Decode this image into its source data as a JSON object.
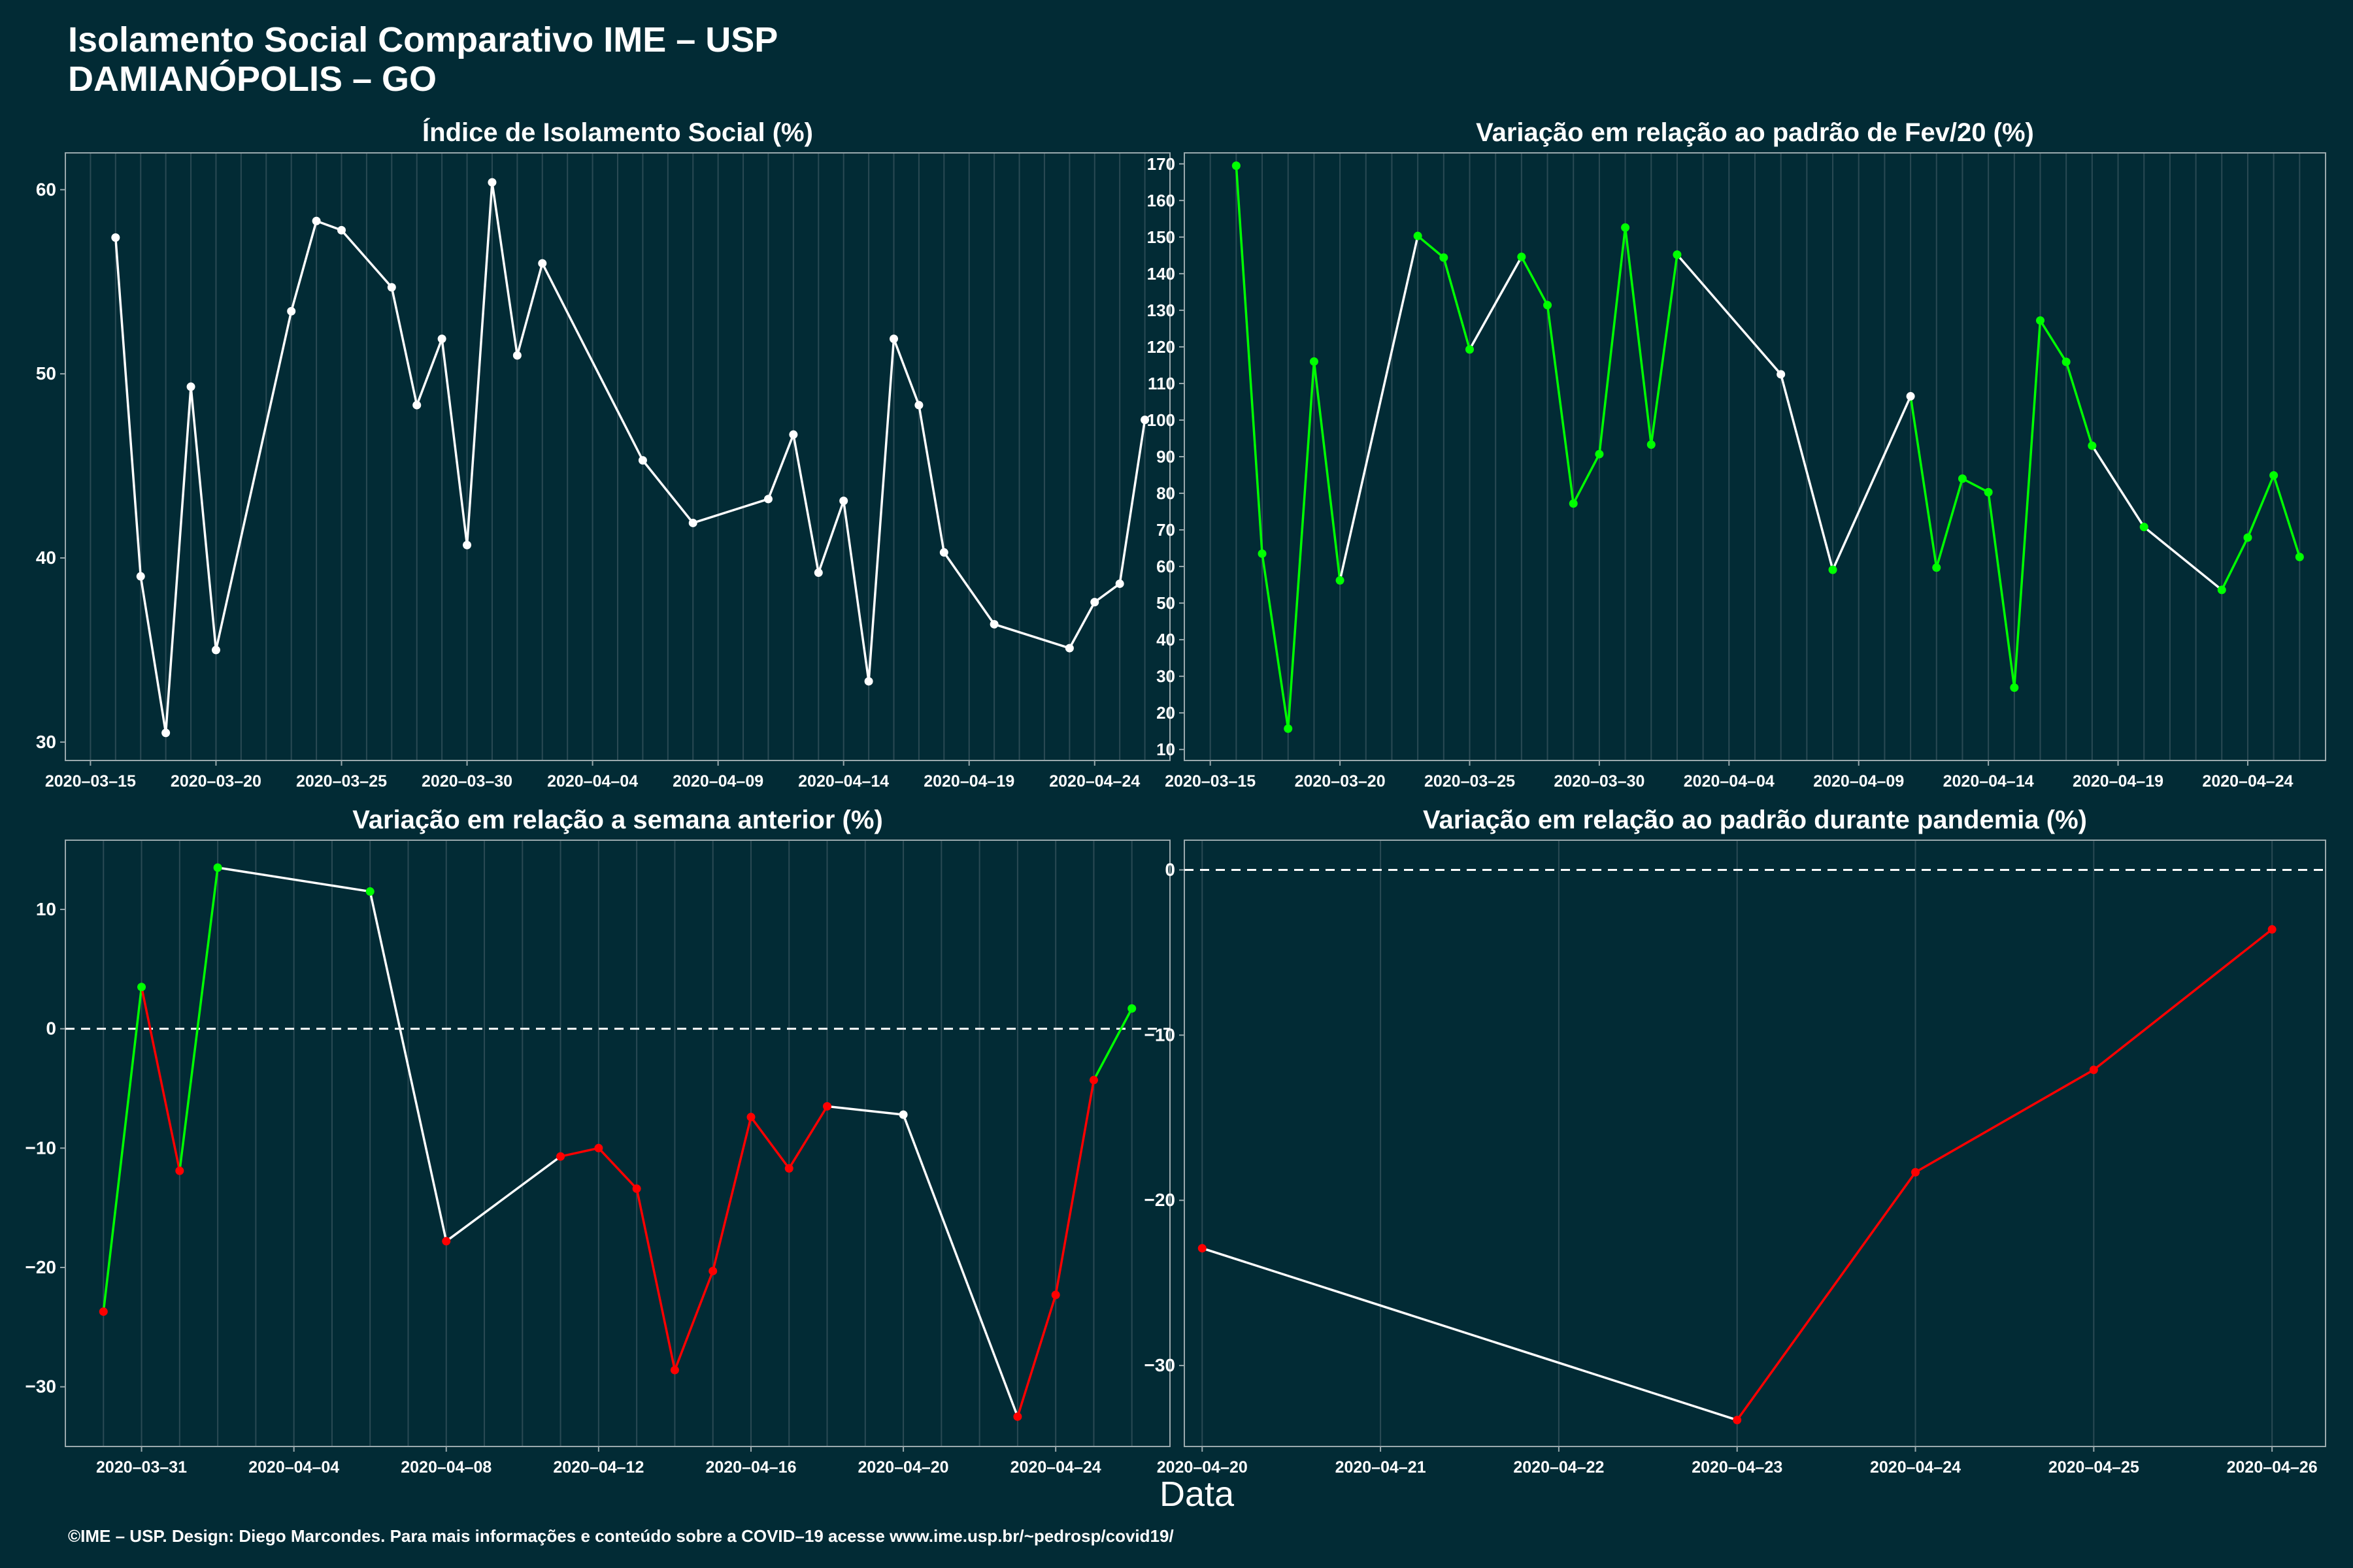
{
  "title_line1": "Isolamento Social Comparativo IME – USP",
  "title_line2": "DAMIANÓPOLIS – GO",
  "xlabel": "Data",
  "footer": "©IME – USP. Design: Diego Marcondes. Para mais informações e conteúdo sobre a COVID–19 acesse www.ime.usp.br/~pedrosp/covid19/",
  "colors": {
    "background": "#022b35",
    "white": "#ffffff",
    "green": "#00ff00",
    "red": "#ff0000",
    "grid": "#2a4a54"
  },
  "chart_data": [
    {
      "type": "line",
      "title": "Índice de Isolamento Social (%)",
      "xlim": [
        "2020-03-14",
        "2020-04-27"
      ],
      "ylim": [
        29,
        62
      ],
      "xticks": [
        "2020-03-15",
        "2020-03-20",
        "2020-03-25",
        "2020-03-30",
        "2020-04-04",
        "2020-04-09",
        "2020-04-14",
        "2020-04-19",
        "2020-04-24"
      ],
      "yticks": [
        30,
        40,
        50,
        60
      ],
      "grid": true,
      "x": [
        "2020-03-16",
        "2020-03-17",
        "2020-03-18",
        "2020-03-19",
        "2020-03-20",
        "2020-03-23",
        "2020-03-24",
        "2020-03-25",
        "2020-03-27",
        "2020-03-28",
        "2020-03-29",
        "2020-03-30",
        "2020-03-31",
        "2020-04-01",
        "2020-04-02",
        "2020-04-06",
        "2020-04-08",
        "2020-04-11",
        "2020-04-12",
        "2020-04-13",
        "2020-04-14",
        "2020-04-15",
        "2020-04-16",
        "2020-04-17",
        "2020-04-18",
        "2020-04-20",
        "2020-04-23",
        "2020-04-24",
        "2020-04-25",
        "2020-04-26"
      ],
      "values": [
        57.4,
        39.0,
        30.5,
        49.3,
        35.0,
        53.4,
        58.3,
        57.8,
        54.7,
        48.3,
        51.9,
        40.7,
        60.4,
        51.0,
        56.0,
        45.3,
        41.9,
        43.2,
        46.7,
        39.2,
        43.1,
        33.3,
        51.9,
        48.3,
        40.3,
        36.4,
        35.1,
        37.6,
        38.6,
        47.5
      ],
      "segment_colors": [
        "white",
        "white",
        "white",
        "white",
        "white",
        "white",
        "white",
        "white",
        "white",
        "white",
        "white",
        "white",
        "white",
        "white",
        "white",
        "white",
        "white",
        "white",
        "white",
        "white",
        "white",
        "white",
        "white",
        "white",
        "white",
        "white",
        "white",
        "white",
        "white"
      ],
      "point_colors": [
        "white",
        "white",
        "white",
        "white",
        "white",
        "white",
        "white",
        "white",
        "white",
        "white",
        "white",
        "white",
        "white",
        "white",
        "white",
        "white",
        "white",
        "white",
        "white",
        "white",
        "white",
        "white",
        "white",
        "white",
        "white",
        "white",
        "white",
        "white",
        "white",
        "white"
      ]
    },
    {
      "type": "line",
      "title": "Variação em relação ao padrão de Fev/20 (%)",
      "xlim": [
        "2020-03-14",
        "2020-04-27"
      ],
      "ylim": [
        7,
        173
      ],
      "xticks": [
        "2020-03-15",
        "2020-03-20",
        "2020-03-25",
        "2020-03-30",
        "2020-04-04",
        "2020-04-09",
        "2020-04-14",
        "2020-04-19",
        "2020-04-24"
      ],
      "yticks": [
        10,
        20,
        30,
        40,
        50,
        60,
        70,
        80,
        90,
        100,
        110,
        120,
        130,
        140,
        150,
        160,
        170
      ],
      "grid": true,
      "x": [
        "2020-03-16",
        "2020-03-17",
        "2020-03-18",
        "2020-03-19",
        "2020-03-20",
        "2020-03-23",
        "2020-03-24",
        "2020-03-25",
        "2020-03-27",
        "2020-03-28",
        "2020-03-29",
        "2020-03-30",
        "2020-03-31",
        "2020-04-01",
        "2020-04-02",
        "2020-04-06",
        "2020-04-08",
        "2020-04-11",
        "2020-04-12",
        "2020-04-13",
        "2020-04-14",
        "2020-04-15",
        "2020-04-16",
        "2020-04-17",
        "2020-04-18",
        "2020-04-20",
        "2020-04-23",
        "2020-04-24",
        "2020-04-25",
        "2020-04-26"
      ],
      "values": [
        169.5,
        63.5,
        15.7,
        116.0,
        56.2,
        150.3,
        144.4,
        119.3,
        144.6,
        131.4,
        77.2,
        90.7,
        152.6,
        93.3,
        145.2,
        112.5,
        59.1,
        106.5,
        59.7,
        84.0,
        80.3,
        26.9,
        127.2,
        115.9,
        93.0,
        70.8,
        53.6,
        67.9,
        84.9,
        62.6
      ],
      "segment_colors": [
        "green",
        "green",
        "green",
        "green",
        "white",
        "green",
        "green",
        "white",
        "green",
        "green",
        "green",
        "green",
        "green",
        "green",
        "white",
        "white",
        "white",
        "green",
        "green",
        "green",
        "green",
        "green",
        "green",
        "green",
        "white",
        "white",
        "green",
        "green",
        "green"
      ],
      "point_colors": [
        "green",
        "green",
        "green",
        "green",
        "green",
        "green",
        "green",
        "green",
        "green",
        "green",
        "green",
        "green",
        "green",
        "green",
        "green",
        "white",
        "green",
        "white",
        "green",
        "green",
        "green",
        "green",
        "green",
        "green",
        "green",
        "green",
        "green",
        "green",
        "green",
        "green"
      ]
    },
    {
      "type": "line",
      "title": "Variação em relação a semana anterior (%)",
      "xlim": [
        "2020-03-29",
        "2020-04-27"
      ],
      "ylim": [
        -35,
        15.8
      ],
      "xticks": [
        "2020-03-31",
        "2020-04-04",
        "2020-04-08",
        "2020-04-12",
        "2020-04-16",
        "2020-04-20",
        "2020-04-24"
      ],
      "yticks": [
        -30,
        -20,
        -10,
        0,
        10
      ],
      "grid": true,
      "hline": 0,
      "x": [
        "2020-03-30",
        "2020-03-31",
        "2020-04-01",
        "2020-04-02",
        "2020-04-06",
        "2020-04-08",
        "2020-04-11",
        "2020-04-12",
        "2020-04-13",
        "2020-04-14",
        "2020-04-15",
        "2020-04-16",
        "2020-04-17",
        "2020-04-18",
        "2020-04-20",
        "2020-04-23",
        "2020-04-24",
        "2020-04-25",
        "2020-04-26"
      ],
      "values": [
        -23.7,
        3.5,
        -11.9,
        13.5,
        11.5,
        -17.8,
        -10.7,
        -10.0,
        -13.4,
        -28.6,
        -20.3,
        -7.4,
        -11.7,
        -6.5,
        -7.2,
        -32.5,
        -22.3,
        -4.3,
        1.7
      ],
      "segment_colors": [
        "green",
        "red",
        "green",
        "white",
        "white",
        "white",
        "red",
        "red",
        "red",
        "red",
        "red",
        "red",
        "red",
        "white",
        "white",
        "red",
        "red",
        "green"
      ],
      "point_colors": [
        "red",
        "green",
        "red",
        "green",
        "green",
        "red",
        "red",
        "red",
        "red",
        "red",
        "red",
        "red",
        "red",
        "red",
        "white",
        "red",
        "red",
        "red",
        "green"
      ]
    },
    {
      "type": "line",
      "title": "Variação em relação ao padrão durante pandemia (%)",
      "xlim": [
        "2020-04-19.9",
        "2020-04-26.3"
      ],
      "ylim": [
        -34.9,
        1.8
      ],
      "xticks": [
        "2020-04-20",
        "2020-04-21",
        "2020-04-22",
        "2020-04-23",
        "2020-04-24",
        "2020-04-25",
        "2020-04-26"
      ],
      "yticks": [
        -30,
        -20,
        -10,
        0
      ],
      "grid": true,
      "hline": 0,
      "x": [
        "2020-04-20",
        "2020-04-23",
        "2020-04-24",
        "2020-04-25",
        "2020-04-26"
      ],
      "values": [
        -22.9,
        -33.3,
        -18.3,
        -12.1,
        -3.6
      ],
      "segment_colors": [
        "white",
        "red",
        "red",
        "red"
      ],
      "point_colors": [
        "red",
        "red",
        "red",
        "red",
        "red"
      ]
    }
  ]
}
